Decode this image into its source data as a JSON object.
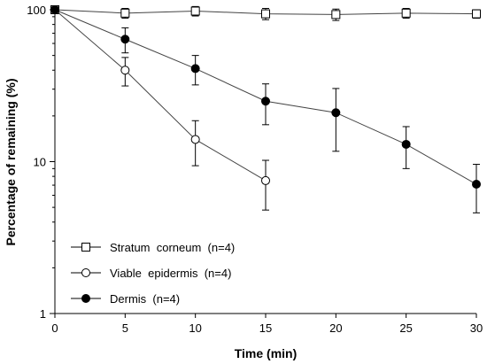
{
  "chart_data": {
    "type": "line",
    "xlabel": "Time (min)",
    "ylabel": "Percentage of remaining (%)",
    "xlim": [
      0,
      30
    ],
    "ylim": [
      1,
      100
    ],
    "yscale": "log",
    "x_ticks": [
      "0",
      "5",
      "10",
      "15",
      "20",
      "25",
      "30"
    ],
    "y_ticks": [
      "1",
      "10",
      "100"
    ],
    "legend_position": "bottom-left",
    "series": [
      {
        "name": "Stratum  corneum  (n=4)",
        "marker": "open-square",
        "x": [
          0,
          5,
          10,
          15,
          20,
          25,
          30
        ],
        "y": [
          100,
          95,
          98,
          94,
          93,
          95,
          94
        ],
        "err_low": [
          0,
          7,
          7,
          8,
          8,
          7,
          6
        ],
        "err_high": [
          0,
          7,
          7,
          8,
          8,
          7,
          6
        ]
      },
      {
        "name": "Viable  epidermis  (n=4)",
        "marker": "open-circle",
        "x": [
          0,
          5,
          10,
          15
        ],
        "y": [
          100,
          40,
          14,
          7.5
        ],
        "err_low": [
          0,
          8.5,
          4.6,
          2.7
        ],
        "err_high": [
          0,
          8.5,
          4.6,
          2.7
        ]
      },
      {
        "name": "Dermis  (n=4)",
        "marker": "filled-circle",
        "x": [
          0,
          5,
          10,
          15,
          20,
          25,
          30
        ],
        "y": [
          100,
          64,
          41,
          25,
          21,
          13,
          7.1
        ],
        "err_low": [
          0,
          12,
          9,
          7.5,
          9.3,
          4,
          2.5
        ],
        "err_high": [
          0,
          12,
          9,
          7.5,
          9.3,
          4,
          2.5
        ]
      }
    ]
  }
}
